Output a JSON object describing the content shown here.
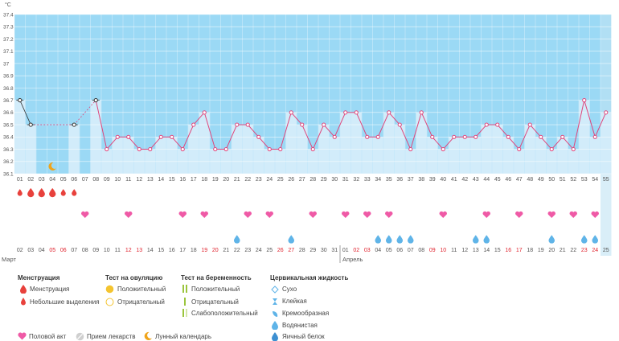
{
  "chart_data": {
    "type": "line",
    "unit_label": "°C",
    "ylim": [
      36.1,
      37.4
    ],
    "yticks": [
      "36.1",
      "36.2",
      "36.3",
      "36.4",
      "36.5",
      "36.6",
      "36.7",
      "36.8",
      "36.9",
      "37",
      "37.1",
      "37.2",
      "37.3",
      "37.4"
    ],
    "cycle_days": [
      "01",
      "02",
      "03",
      "04",
      "05",
      "06",
      "07",
      "08",
      "09",
      "10",
      "11",
      "12",
      "13",
      "14",
      "15",
      "16",
      "17",
      "18",
      "19",
      "20",
      "21",
      "22",
      "23",
      "24",
      "25",
      "26",
      "27",
      "28",
      "29",
      "30",
      "31",
      "32",
      "33",
      "34",
      "35",
      "36",
      "37",
      "38",
      "39",
      "40",
      "41",
      "42",
      "43",
      "44",
      "45",
      "46",
      "47",
      "48",
      "49",
      "50",
      "51",
      "52",
      "53",
      "54",
      "55"
    ],
    "dates": [
      "02",
      "03",
      "04",
      "05",
      "06",
      "07",
      "08",
      "09",
      "10",
      "11",
      "12",
      "13",
      "14",
      "15",
      "16",
      "17",
      "18",
      "19",
      "20",
      "21",
      "22",
      "23",
      "24",
      "25",
      "26",
      "27",
      "28",
      "29",
      "30",
      "31",
      "01",
      "02",
      "03",
      "04",
      "05",
      "06",
      "07",
      "08",
      "09",
      "10",
      "11",
      "12",
      "13",
      "14",
      "15",
      "16",
      "17",
      "18",
      "19",
      "20",
      "21",
      "22",
      "23",
      "24",
      "25"
    ],
    "weekend_date_indices": [
      3,
      4,
      10,
      11,
      17,
      18,
      24,
      25,
      31,
      32,
      38,
      39,
      45,
      46,
      52,
      53
    ],
    "months": [
      {
        "label": "Март",
        "start_index": 0
      },
      {
        "label": "Апрель",
        "start_index": 30
      }
    ],
    "temperatures": [
      36.7,
      36.5,
      null,
      null,
      null,
      36.5,
      null,
      36.7,
      36.3,
      36.4,
      36.4,
      36.3,
      36.3,
      36.4,
      36.4,
      36.3,
      36.5,
      36.6,
      36.3,
      36.3,
      36.5,
      36.5,
      36.4,
      36.3,
      36.3,
      36.6,
      36.5,
      36.3,
      36.5,
      36.4,
      36.6,
      36.6,
      36.4,
      36.4,
      36.6,
      36.5,
      36.3,
      36.6,
      36.4,
      36.3,
      36.4,
      36.4,
      36.4,
      36.5,
      36.5,
      36.4,
      36.3,
      36.5,
      36.4,
      36.3,
      36.4,
      36.3,
      36.7,
      36.4,
      36.6
    ],
    "excluded_point_indices": [
      0,
      1,
      5,
      7
    ],
    "dashed_segments": [
      [
        1,
        5
      ],
      [
        5,
        7
      ]
    ],
    "today_index": 54,
    "moon_index": 3,
    "menstruation": {
      "heavy": [
        1,
        2,
        3
      ],
      "light": [
        0,
        4,
        5
      ]
    },
    "intercourse_indices": [
      6,
      10,
      15,
      17,
      21,
      23,
      27,
      30,
      32,
      34,
      39,
      43,
      46,
      49,
      51,
      53
    ],
    "cervical_watery_indices": [
      20,
      25,
      33,
      34,
      35,
      36,
      42,
      43,
      49,
      52,
      53
    ],
    "colors": {
      "sky": "#9bd9f5",
      "bar": "#d2ecfa",
      "line": "#e0457b",
      "drop": "#e8413c",
      "heart": "#ef5aa6",
      "fluid": "#5fb4e8",
      "today": "#bfe3f4"
    }
  },
  "legend": {
    "menstruation": {
      "title": "Менструация",
      "items": [
        "Менструация",
        "Небольшие выделения"
      ]
    },
    "ovulation": {
      "title": "Тест на овуляцию",
      "items": [
        "Положительный",
        "Отрицательный"
      ]
    },
    "pregnancy": {
      "title": "Тест на беременность",
      "items": [
        "Положительный",
        "Отрицательный",
        "Слабоположительный"
      ]
    },
    "cervical": {
      "title": "Цервикальная жидкость",
      "items": [
        "Сухо",
        "Клейкая",
        "Кремообразная",
        "Водянистая",
        "Яичный белок"
      ]
    },
    "bottom": {
      "intercourse": "Половой акт",
      "medicine": "Прием лекарств",
      "lunar": "Лунный календарь"
    }
  }
}
